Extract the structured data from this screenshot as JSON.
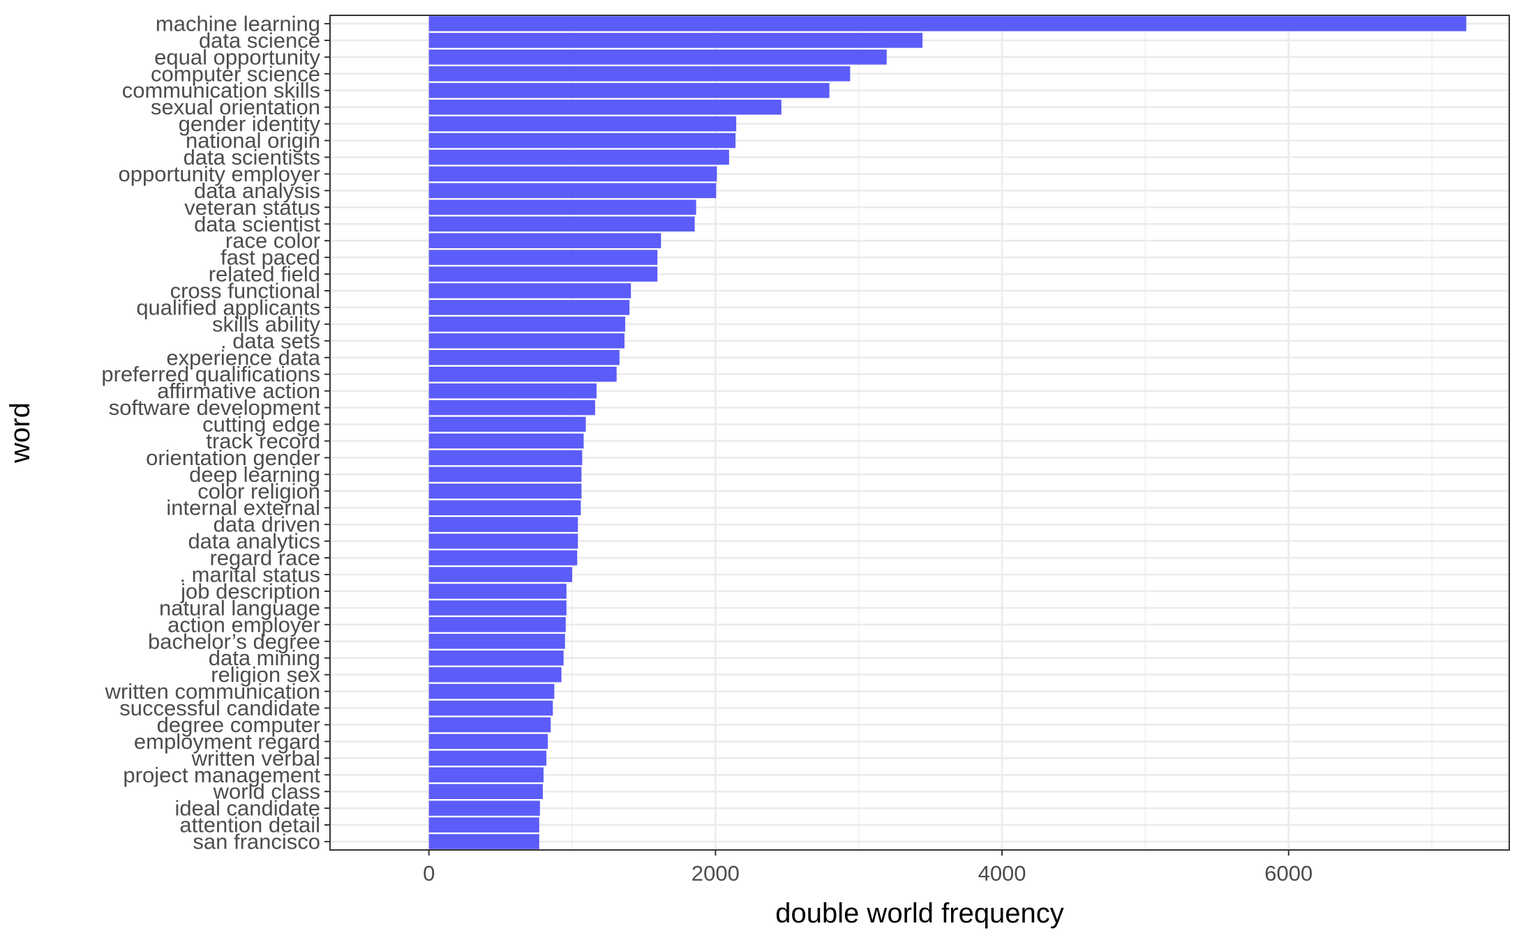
{
  "chart_data": {
    "type": "bar",
    "orientation": "horizontal",
    "xlabel": "double world frequency",
    "ylabel": "word",
    "xlim": [
      -690,
      7540
    ],
    "xticks": [
      0,
      2000,
      4000,
      6000
    ],
    "x_minor_ticks": [
      1000,
      3000,
      5000,
      7000
    ],
    "grid": true,
    "legend": "none",
    "colors": {
      "bar": "#5c5cf9",
      "grid": "#ebebeb",
      "panel_border": "#333333"
    },
    "categories": [
      "machine learning",
      "data science",
      "equal opportunity",
      "computer science",
      "communication skills",
      "sexual orientation",
      "gender identity",
      "national origin",
      "data scientists",
      "opportunity employer",
      "data analysis",
      "veteran status",
      "data scientist",
      "race color",
      "fast paced",
      "related field",
      "cross functional",
      "qualified applicants",
      "skills ability",
      ". data sets",
      "experience data",
      "preferred qualifications",
      "affirmative action",
      "software development",
      "cutting edge",
      "track record",
      "orientation gender",
      "deep learning",
      "color religion",
      "internal external",
      "data driven",
      "data analytics",
      "regard race",
      ". marital status",
      "job description",
      "natural language",
      "action employer",
      "bachelor’s degree",
      "data mining",
      "religion sex",
      "written communication",
      "successful candidate",
      "degree computer",
      "employment regard",
      "written verbal",
      "project management",
      "world class",
      "ideal candidate",
      "attention detail",
      "san francisco"
    ],
    "values": [
      7240,
      3445,
      3195,
      2940,
      2795,
      2460,
      2145,
      2140,
      2095,
      2010,
      2005,
      1865,
      1855,
      1620,
      1595,
      1595,
      1410,
      1400,
      1370,
      1365,
      1330,
      1310,
      1170,
      1160,
      1095,
      1080,
      1070,
      1065,
      1065,
      1060,
      1040,
      1040,
      1035,
      1000,
      960,
      960,
      955,
      950,
      940,
      925,
      875,
      865,
      850,
      830,
      820,
      800,
      795,
      775,
      770,
      770
    ]
  }
}
